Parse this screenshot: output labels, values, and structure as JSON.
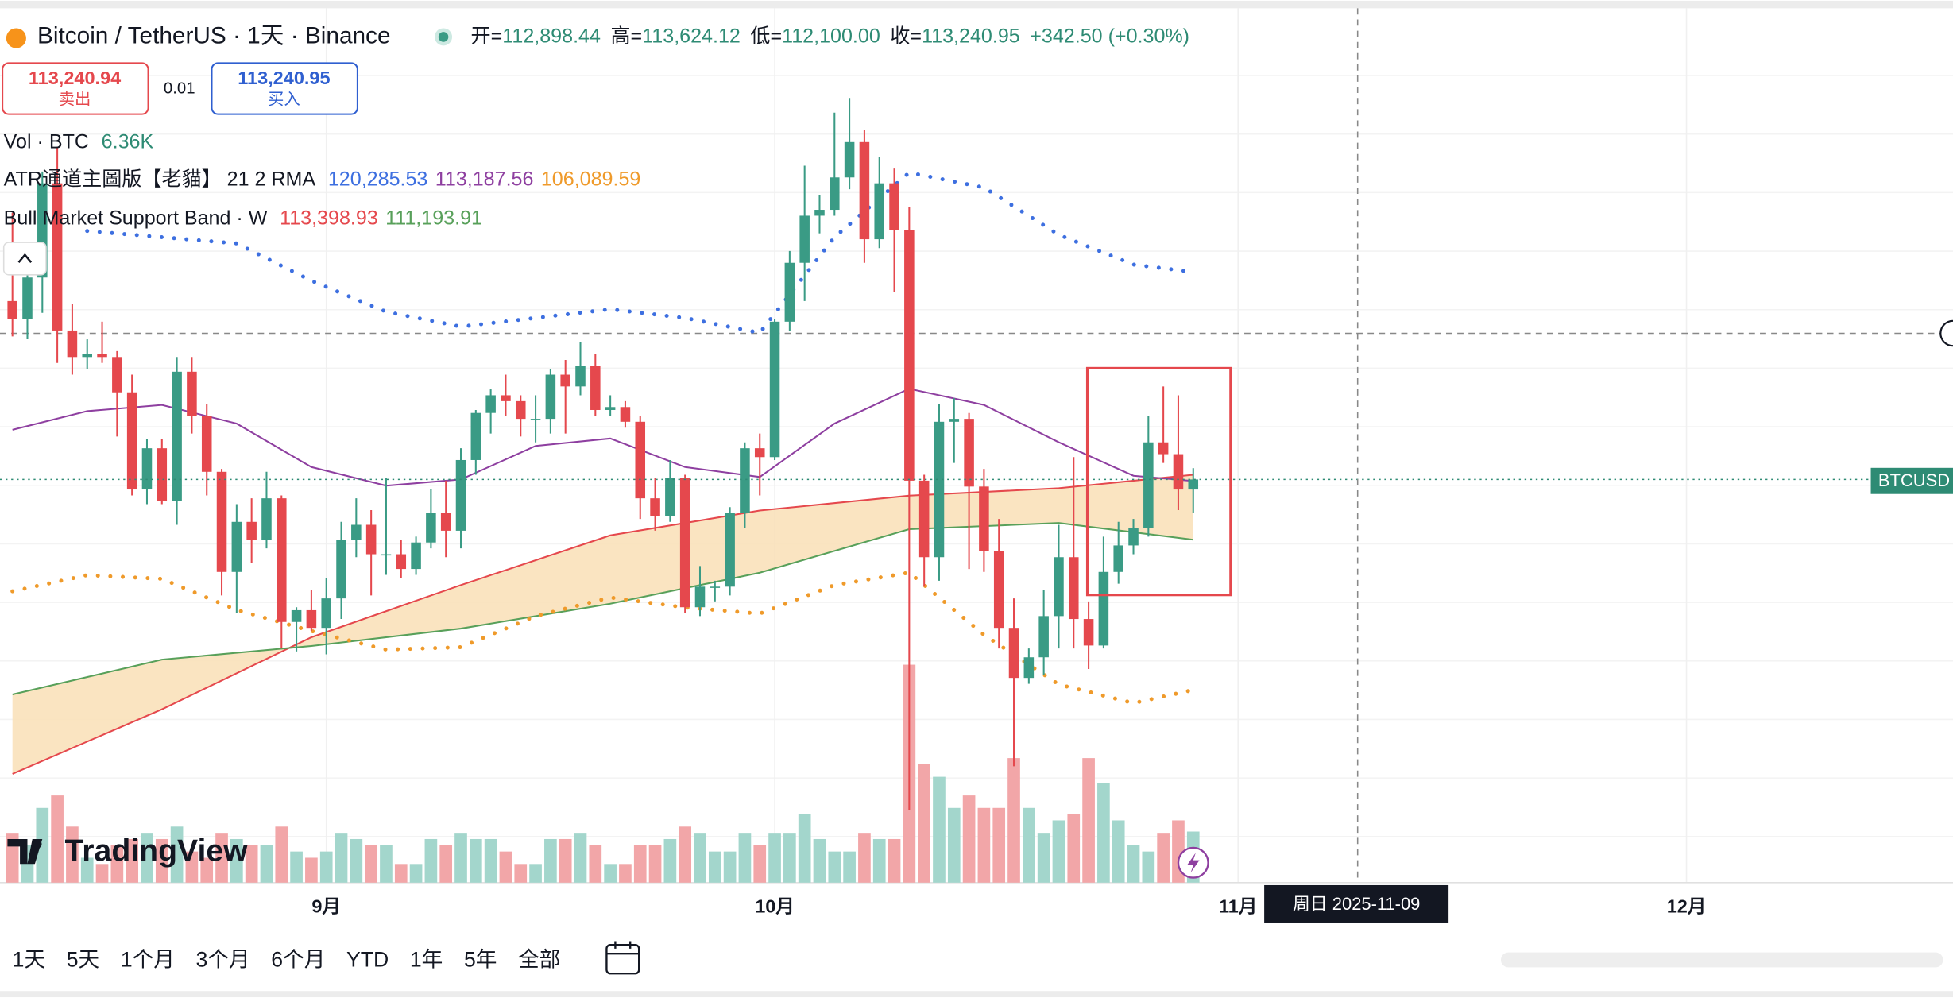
{
  "header": {
    "title": "Bitcoin / TetherUS · 1天 · Binance",
    "ohlc": [
      [
        "开=",
        "112,898.44"
      ],
      [
        "高=",
        "113,624.12"
      ],
      [
        "低=",
        "112,100.00"
      ],
      [
        "收=",
        "113,240.95"
      ]
    ],
    "change": "+342.50 (+0.30%)",
    "sell": {
      "price": "113,240.94",
      "label": "卖出"
    },
    "spread": "0.01",
    "buy": {
      "price": "113,240.95",
      "label": "买入"
    }
  },
  "legend": {
    "vol": {
      "label": "Vol · BTC",
      "value": "6.36K"
    },
    "atr": {
      "label": "ATR通道主圖版【老貓】 21 2 RMA",
      "values": [
        "120,285.53",
        "113,187.56",
        "106,089.59"
      ]
    },
    "bmsb": {
      "label": "Bull Market Support Band · W",
      "values": [
        "113,398.93",
        "111,193.91"
      ]
    }
  },
  "branding": "TradingView",
  "symbol_label": "BTCUSD",
  "toolbar": [
    "1天",
    "5天",
    "1个月",
    "3个月",
    "6个月",
    "YTD",
    "1年",
    "5年",
    "全部"
  ],
  "chart_data": {
    "type": "candlestick",
    "categories": [
      "2025-08-11",
      "2025-08-12",
      "2025-08-13",
      "2025-08-14",
      "2025-08-15",
      "2025-08-16",
      "2025-08-17",
      "2025-08-18",
      "2025-08-19",
      "2025-08-20",
      "2025-08-21",
      "2025-08-22",
      "2025-08-23",
      "2025-08-24",
      "2025-08-25",
      "2025-08-26",
      "2025-08-27",
      "2025-08-28",
      "2025-08-29",
      "2025-08-30",
      "2025-08-31",
      "2025-09-01",
      "2025-09-02",
      "2025-09-03",
      "2025-09-04",
      "2025-09-05",
      "2025-09-06",
      "2025-09-07",
      "2025-09-08",
      "2025-09-09",
      "2025-09-10",
      "2025-09-11",
      "2025-09-12",
      "2025-09-13",
      "2025-09-14",
      "2025-09-15",
      "2025-09-16",
      "2025-09-17",
      "2025-09-18",
      "2025-09-19",
      "2025-09-20",
      "2025-09-21",
      "2025-09-22",
      "2025-09-23",
      "2025-09-24",
      "2025-09-25",
      "2025-09-26",
      "2025-09-27",
      "2025-09-28",
      "2025-09-29",
      "2025-09-30",
      "2025-10-01",
      "2025-10-02",
      "2025-10-03",
      "2025-10-04",
      "2025-10-05",
      "2025-10-06",
      "2025-10-07",
      "2025-10-08",
      "2025-10-09",
      "2025-10-10",
      "2025-10-11",
      "2025-10-12",
      "2025-10-13",
      "2025-10-14",
      "2025-10-15",
      "2025-10-16",
      "2025-10-17",
      "2025-10-18",
      "2025-10-19",
      "2025-10-20",
      "2025-10-21",
      "2025-10-22",
      "2025-10-23",
      "2025-10-24",
      "2025-10-25",
      "2025-10-26",
      "2025-10-27",
      "2025-10-28",
      "2025-10-29"
    ],
    "open": [
      119300,
      118700,
      120100,
      123300,
      118300,
      117400,
      117500,
      117400,
      116200,
      112900,
      114300,
      112500,
      116900,
      115400,
      113500,
      110100,
      111800,
      111200,
      112600,
      108400,
      108800,
      108200,
      109200,
      111200,
      111700,
      110700,
      110700,
      110200,
      111100,
      112100,
      111500,
      113900,
      115500,
      116100,
      115900,
      115300,
      115300,
      116800,
      116400,
      117100,
      115600,
      115700,
      115200,
      112600,
      112000,
      113300,
      108900,
      109600,
      109600,
      112100,
      114300,
      114000,
      118600,
      120600,
      122200,
      122400,
      123500,
      124700,
      121400,
      123300,
      121700,
      113200,
      110600,
      115200,
      115300,
      113000,
      110800,
      108200,
      106500,
      107200,
      108600,
      110600,
      108500,
      107600,
      110100,
      111000,
      111600,
      114500,
      114100,
      112898.44
    ],
    "high": [
      122300,
      120600,
      123700,
      124500,
      119200,
      118000,
      118600,
      117600,
      116800,
      114600,
      114600,
      117400,
      117400,
      115800,
      113600,
      112400,
      112600,
      113500,
      112700,
      108900,
      109500,
      109900,
      111800,
      112600,
      112200,
      113300,
      111200,
      111300,
      112900,
      113200,
      114300,
      115600,
      116300,
      116800,
      116100,
      116100,
      117000,
      117300,
      117900,
      117500,
      116100,
      115900,
      115400,
      113300,
      113900,
      113400,
      110300,
      109800,
      112300,
      114500,
      114800,
      118700,
      121000,
      123900,
      122900,
      125700,
      126200,
      125100,
      124200,
      123800,
      122500,
      113400,
      115800,
      116000,
      115500,
      113600,
      111900,
      109200,
      107500,
      109500,
      111700,
      114000,
      109100,
      111300,
      111800,
      111900,
      115400,
      116400,
      116100,
      113624.12
    ],
    "low": [
      118100,
      118000,
      118900,
      117200,
      116800,
      117000,
      117200,
      114700,
      112700,
      112400,
      112400,
      111700,
      114800,
      112700,
      109300,
      108700,
      110400,
      110900,
      107500,
      107400,
      108100,
      107300,
      108500,
      110600,
      109300,
      110000,
      109900,
      110000,
      110900,
      110600,
      110900,
      113400,
      114800,
      115400,
      114700,
      114500,
      114800,
      114800,
      116100,
      115400,
      115400,
      115000,
      111900,
      111500,
      111800,
      108700,
      108600,
      109100,
      109300,
      111600,
      112700,
      113900,
      118300,
      119300,
      121600,
      122200,
      123100,
      120600,
      121100,
      119600,
      102000,
      109600,
      109800,
      113800,
      110200,
      110100,
      107500,
      103500,
      106300,
      106600,
      107500,
      107500,
      106800,
      107500,
      109700,
      110700,
      111300,
      113800,
      112200,
      112100
    ],
    "close": [
      118700,
      120100,
      123300,
      118300,
      117400,
      117500,
      117400,
      116200,
      112900,
      114300,
      112500,
      116900,
      115400,
      113500,
      110100,
      111800,
      111200,
      112600,
      108400,
      108800,
      108200,
      109200,
      111200,
      111700,
      110700,
      110700,
      110200,
      111100,
      112100,
      111500,
      113900,
      115500,
      116100,
      115900,
      115300,
      115300,
      116800,
      116400,
      117100,
      115600,
      115700,
      115200,
      112600,
      112000,
      113300,
      108900,
      109600,
      109600,
      112100,
      114300,
      114000,
      118600,
      120600,
      122200,
      122400,
      123500,
      124700,
      121400,
      123300,
      121700,
      113200,
      110600,
      115200,
      115300,
      113000,
      110800,
      108200,
      106500,
      107200,
      108600,
      110600,
      108500,
      107600,
      110100,
      111000,
      111600,
      114500,
      114100,
      112898.44,
      113240.95
    ],
    "volume": [
      6200,
      4650,
      9300,
      10850,
      6975,
      3100,
      2325,
      4650,
      5425,
      6200,
      5425,
      6975,
      3875,
      3100,
      6200,
      5425,
      4650,
      4650,
      6975,
      3875,
      3100,
      3875,
      6200,
      5425,
      4650,
      4650,
      2325,
      2325,
      5425,
      4650,
      6200,
      5425,
      5425,
      3875,
      2325,
      2325,
      5425,
      5425,
      6200,
      4650,
      2325,
      2325,
      4650,
      4650,
      5425,
      6975,
      6200,
      3875,
      3875,
      6200,
      4650,
      6200,
      6200,
      8525,
      5425,
      3875,
      3875,
      6200,
      5425,
      5425,
      27125,
      14725,
      13175,
      9300,
      10850,
      9300,
      9300,
      15500,
      9300,
      6200,
      7750,
      8525,
      15500,
      12400,
      7750,
      4650,
      3875,
      6200,
      7750,
      6360
    ],
    "up_color": "#3a9b85",
    "down_color": "#e5484d",
    "volume_up_color": "#a3d6cc",
    "volume_down_color": "#f2a6a8",
    "band_fill": "#f9dfb6",
    "overlays": [
      {
        "color": "#e5484d",
        "style": "line",
        "x": [
          "2025-08-11",
          "2025-08-21",
          "2025-08-31",
          "2025-09-10",
          "2025-09-20",
          "2025-09-30",
          "2025-10-10",
          "2025-10-20",
          "2025-10-29"
        ],
        "values": [
          103239,
          105433,
          107881,
          109653,
          111341,
          112185,
          112691,
          112945,
          113398.93
        ]
      },
      {
        "color": "#58a05a",
        "style": "line",
        "x": [
          "2025-08-11",
          "2025-08-21",
          "2025-08-31",
          "2025-09-10",
          "2025-09-20",
          "2025-09-30",
          "2025-10-10",
          "2025-10-20",
          "2025-10-29"
        ],
        "values": [
          105939,
          107121,
          107585,
          108176,
          109020,
          110075,
          111552,
          111763,
          111193.91
        ]
      },
      {
        "color": "#8e3fa0",
        "style": "line",
        "x": [
          "2025-08-11",
          "2025-08-16",
          "2025-08-21",
          "2025-08-26",
          "2025-08-31",
          "2025-09-05",
          "2025-09-10",
          "2025-09-15",
          "2025-09-20",
          "2025-09-25",
          "2025-09-30",
          "2025-10-05",
          "2025-10-10",
          "2025-10-15",
          "2025-10-20",
          "2025-10-25",
          "2025-10-29"
        ],
        "values": [
          114928,
          115561,
          115772,
          115139,
          113662,
          113029,
          113240,
          114379,
          114633,
          113662,
          113324,
          115139,
          116321,
          115772,
          114506,
          113367,
          113187.56
        ]
      },
      {
        "color": "#3d6fe0",
        "style": "dots",
        "x": [
          "2025-08-16",
          "2025-08-21",
          "2025-08-26",
          "2025-08-31",
          "2025-09-05",
          "2025-09-10",
          "2025-09-15",
          "2025-09-20",
          "2025-09-25",
          "2025-09-30",
          "2025-10-05",
          "2025-10-10",
          "2025-10-15",
          "2025-10-20",
          "2025-10-25",
          "2025-10-29"
        ],
        "values": [
          121680,
          121469,
          121258,
          119992,
          118937,
          118431,
          118726,
          119022,
          118726,
          118220,
          121469,
          123663,
          123157,
          121553,
          120540,
          120285.53
        ]
      },
      {
        "color": "#ef9a2a",
        "style": "dots",
        "x": [
          "2025-08-11",
          "2025-08-16",
          "2025-08-21",
          "2025-08-26",
          "2025-08-31",
          "2025-09-05",
          "2025-09-10",
          "2025-09-15",
          "2025-09-20",
          "2025-09-25",
          "2025-09-30",
          "2025-10-05",
          "2025-10-10",
          "2025-10-15",
          "2025-10-20",
          "2025-10-25",
          "2025-10-29"
        ],
        "values": [
          109442,
          109991,
          109864,
          108809,
          108092,
          107459,
          107543,
          108598,
          109231,
          108893,
          108683,
          109653,
          110075,
          107965,
          106277,
          105644,
          106089.59
        ]
      }
    ],
    "xticks": [
      {
        "value": "2025-09-01",
        "label": "9月"
      },
      {
        "value": "2025-10-01",
        "label": "10月"
      },
      {
        "value": "2025-11-01",
        "label": "11月"
      },
      {
        "value": "2025-12-01",
        "label": "12月"
      }
    ],
    "crosshair": {
      "x": "2025-11-09",
      "label": "周日 2025-11-09"
    }
  }
}
